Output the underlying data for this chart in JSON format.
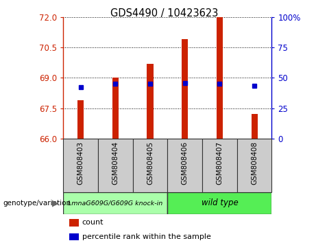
{
  "title": "GDS4490 / 10423623",
  "categories": [
    "GSM808403",
    "GSM808404",
    "GSM808405",
    "GSM808406",
    "GSM808407",
    "GSM808408"
  ],
  "bar_bottoms": [
    66,
    66,
    66,
    66,
    66,
    66
  ],
  "bar_tops": [
    67.9,
    69.0,
    69.7,
    70.9,
    72.0,
    67.2
  ],
  "percentile_values": [
    68.55,
    68.7,
    68.7,
    68.75,
    68.7,
    68.6
  ],
  "left_ylim": [
    66,
    72
  ],
  "left_yticks": [
    66,
    67.5,
    69,
    70.5,
    72
  ],
  "right_ylim": [
    0,
    100
  ],
  "right_yticks": [
    0,
    25,
    50,
    75,
    100
  ],
  "right_yticklabels": [
    "0",
    "25",
    "50",
    "75",
    "100%"
  ],
  "bar_color": "#cc2200",
  "percentile_color": "#0000cc",
  "group1_label": "LmnaG609G/G609G knock-in",
  "group2_label": "wild type",
  "group1_color": "#aaffaa",
  "group2_color": "#55ee55",
  "group1_indices": [
    0,
    1,
    2
  ],
  "group2_indices": [
    3,
    4,
    5
  ],
  "genotype_label": "genotype/variation",
  "legend_count_label": "count",
  "legend_percentile_label": "percentile rank within the sample",
  "bar_width": 0.18,
  "fig_width": 4.61,
  "fig_height": 3.54
}
